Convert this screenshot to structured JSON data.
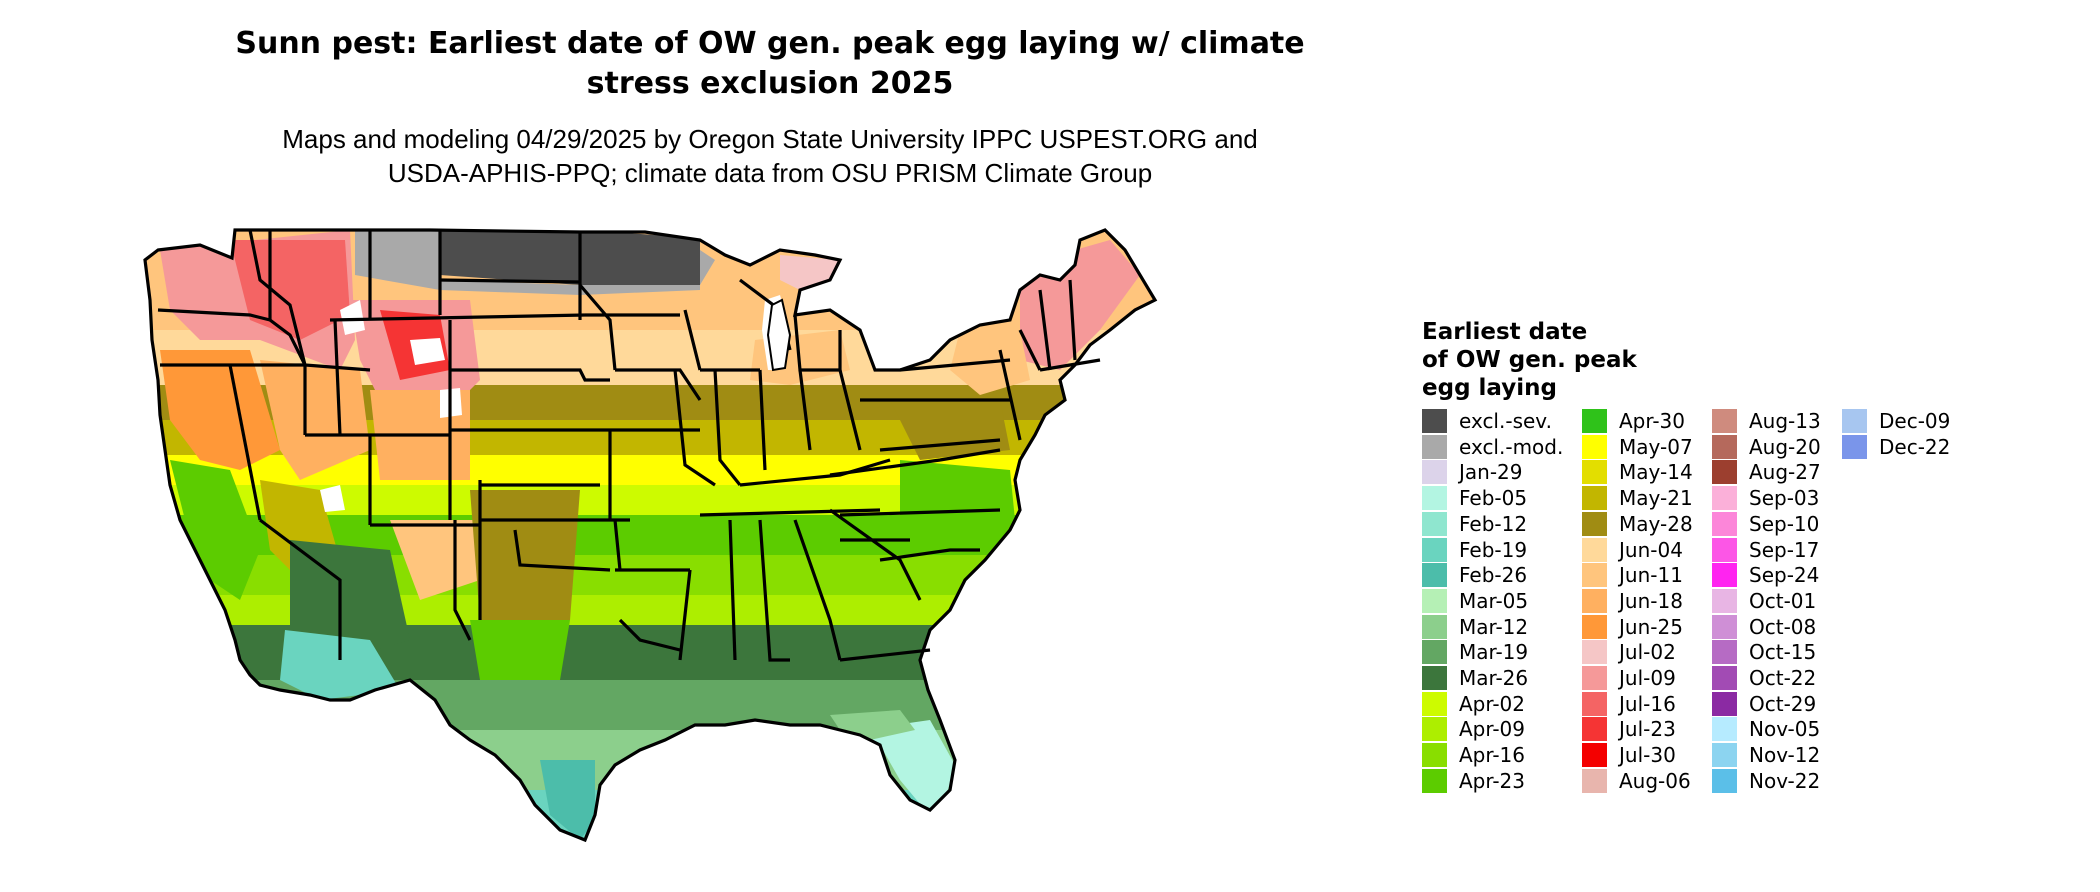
{
  "title": "Sunn pest: Earliest date of OW gen. peak egg laying w/ climate stress exclusion 2025",
  "title_line1": "Sunn pest: Earliest date of OW gen. peak egg laying w/ climate",
  "title_line2": "stress exclusion 2025",
  "subtitle_line1": "Maps and modeling 04/29/2025 by Oregon State University IPPC USPEST.ORG and",
  "subtitle_line2": "USDA-APHIS-PPQ; climate data from OSU PRISM Climate Group",
  "legend": {
    "title_line1": "Earliest date",
    "title_line2": "of OW gen. peak",
    "title_line3": "egg laying",
    "items": [
      {
        "label": "excl.-sev.",
        "color": "#4d4d4d"
      },
      {
        "label": "excl.-mod.",
        "color": "#a9a9a9"
      },
      {
        "label": "Jan-29",
        "color": "#dcd3ea"
      },
      {
        "label": "Feb-05",
        "color": "#b3f5e2"
      },
      {
        "label": "Feb-12",
        "color": "#8fe6cf"
      },
      {
        "label": "Feb-19",
        "color": "#6ad4bf"
      },
      {
        "label": "Feb-26",
        "color": "#4cbdaa"
      },
      {
        "label": "Mar-05",
        "color": "#b5f0b5"
      },
      {
        "label": "Mar-12",
        "color": "#8ccf8c"
      },
      {
        "label": "Mar-19",
        "color": "#63a763"
      },
      {
        "label": "Mar-26",
        "color": "#3c763c"
      },
      {
        "label": "Apr-02",
        "color": "#cdfb00"
      },
      {
        "label": "Apr-09",
        "color": "#adee00"
      },
      {
        "label": "Apr-16",
        "color": "#89de00"
      },
      {
        "label": "Apr-23",
        "color": "#5ccc00"
      },
      {
        "label": "Apr-30",
        "color": "#2fc21a"
      },
      {
        "label": "May-07",
        "color": "#ffff00"
      },
      {
        "label": "May-14",
        "color": "#e3de00"
      },
      {
        "label": "May-21",
        "color": "#c2b600"
      },
      {
        "label": "May-28",
        "color": "#a08c13"
      },
      {
        "label": "Jun-04",
        "color": "#ffd99a"
      },
      {
        "label": "Jun-11",
        "color": "#ffc57d"
      },
      {
        "label": "Jun-18",
        "color": "#ffb060"
      },
      {
        "label": "Jun-25",
        "color": "#ff9838"
      },
      {
        "label": "Jul-02",
        "color": "#f5c6c6"
      },
      {
        "label": "Jul-09",
        "color": "#f59999"
      },
      {
        "label": "Jul-16",
        "color": "#f46464"
      },
      {
        "label": "Jul-23",
        "color": "#f53434"
      },
      {
        "label": "Jul-30",
        "color": "#f40000"
      },
      {
        "label": "Aug-06",
        "color": "#e8b5ad"
      },
      {
        "label": "Aug-13",
        "color": "#cf8b7e"
      },
      {
        "label": "Aug-20",
        "color": "#b5695c"
      },
      {
        "label": "Aug-27",
        "color": "#9c3f2f"
      },
      {
        "label": "Sep-03",
        "color": "#fbb0d9"
      },
      {
        "label": "Sep-10",
        "color": "#fc86d9"
      },
      {
        "label": "Sep-17",
        "color": "#fc56e6"
      },
      {
        "label": "Sep-24",
        "color": "#ff24f0"
      },
      {
        "label": "Oct-01",
        "color": "#e8b5e4"
      },
      {
        "label": "Oct-08",
        "color": "#cf8fd6"
      },
      {
        "label": "Oct-15",
        "color": "#b66bc4"
      },
      {
        "label": "Oct-22",
        "color": "#a24bb4"
      },
      {
        "label": "Oct-29",
        "color": "#8b2aa3"
      },
      {
        "label": "Nov-05",
        "color": "#b6ebff"
      },
      {
        "label": "Nov-12",
        "color": "#8cd4f0"
      },
      {
        "label": "Nov-22",
        "color": "#5bbfe8"
      },
      {
        "label": "Dec-09",
        "color": "#a7c6f0"
      },
      {
        "label": "Dec-22",
        "color": "#7a95ea"
      }
    ]
  }
}
